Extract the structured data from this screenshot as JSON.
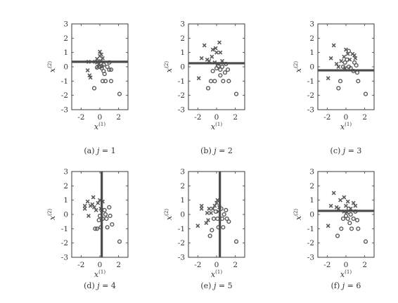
{
  "chart_data": [
    {
      "type": "scatter",
      "caption_prefix": "(a) ",
      "caption_var": "j",
      "caption_rest": " = 1",
      "xlabel": "x",
      "ylabel": "x",
      "xlabel_sup": "(1)",
      "ylabel_sup": "(2)",
      "xlim": [
        -3,
        3
      ],
      "ylim": [
        -3,
        3
      ],
      "xticks": [
        "-2",
        "0",
        "2"
      ],
      "xtick_values": [
        -2,
        0,
        2
      ],
      "yticks": [
        "3",
        "2",
        "1",
        "0",
        "-1",
        "-2",
        "-3"
      ],
      "ytick_values": [
        3,
        2,
        1,
        0,
        -1,
        -2,
        -3
      ],
      "split": {
        "orientation": "horizontal",
        "value": 0.35
      },
      "series": [
        {
          "marker": "cross",
          "points": [
            [
              -1.2,
              0.35
            ],
            [
              -1.3,
              -0.25
            ],
            [
              -1.1,
              -0.6
            ],
            [
              -1.0,
              -0.75
            ],
            [
              -0.5,
              0.35
            ],
            [
              -0.3,
              0.55
            ],
            [
              -0.3,
              0.3
            ],
            [
              -0.1,
              0.2
            ],
            [
              0.0,
              0.75
            ],
            [
              0.0,
              1.05
            ],
            [
              0.15,
              0.85
            ],
            [
              0.3,
              0.6
            ],
            [
              0.1,
              0.4
            ],
            [
              -0.2,
              0.0
            ]
          ]
        },
        {
          "marker": "circle",
          "points": [
            [
              -0.6,
              -1.5
            ],
            [
              -0.3,
              -0.05
            ],
            [
              0.0,
              0.0
            ],
            [
              0.2,
              0.05
            ],
            [
              0.2,
              -0.1
            ],
            [
              0.4,
              0.15
            ],
            [
              0.4,
              -0.3
            ],
            [
              0.5,
              -0.5
            ],
            [
              0.3,
              -1.0
            ],
            [
              0.6,
              -1.0
            ],
            [
              0.8,
              0.0
            ],
            [
              1.0,
              0.3
            ],
            [
              1.0,
              -0.2
            ],
            [
              1.2,
              -0.2
            ],
            [
              1.2,
              -1.0
            ],
            [
              2.1,
              -1.9
            ]
          ]
        }
      ]
    },
    {
      "type": "scatter",
      "caption_prefix": "(b) ",
      "caption_var": "j",
      "caption_rest": " = 2",
      "xlabel": "x",
      "ylabel": "x",
      "xlabel_sup": "(1)",
      "ylabel_sup": "(2)",
      "xlim": [
        -3,
        3
      ],
      "ylim": [
        -3,
        3
      ],
      "xticks": [
        "-2",
        "0",
        "2"
      ],
      "xtick_values": [
        -2,
        0,
        2
      ],
      "yticks": [
        "3",
        "2",
        "1",
        "0",
        "-1",
        "-2",
        "-3"
      ],
      "ytick_values": [
        3,
        2,
        1,
        0,
        -1,
        -2,
        -3
      ],
      "split": {
        "orientation": "horizontal",
        "value": 0.25
      },
      "series": [
        {
          "marker": "cross",
          "points": [
            [
              -1.9,
              -0.8
            ],
            [
              -1.6,
              0.6
            ],
            [
              -1.3,
              1.5
            ],
            [
              -1.0,
              0.5
            ],
            [
              -0.8,
              0.4
            ],
            [
              -0.5,
              0.7
            ],
            [
              -0.4,
              1.2
            ],
            [
              -0.1,
              1.3
            ],
            [
              0.0,
              1.0
            ],
            [
              0.3,
              1.7
            ],
            [
              0.4,
              1.0
            ],
            [
              0.6,
              0.4
            ],
            [
              -0.2,
              0.3
            ],
            [
              0.1,
              0.2
            ]
          ]
        },
        {
          "marker": "circle",
          "points": [
            [
              -0.9,
              -1.5
            ],
            [
              -0.6,
              -1.0
            ],
            [
              -0.4,
              -0.3
            ],
            [
              -0.2,
              -1.0
            ],
            [
              0.0,
              -0.1
            ],
            [
              0.2,
              0.05
            ],
            [
              0.4,
              -0.2
            ],
            [
              0.4,
              -0.6
            ],
            [
              0.6,
              0.0
            ],
            [
              0.7,
              -1.0
            ],
            [
              0.9,
              -0.4
            ],
            [
              1.0,
              0.2
            ],
            [
              1.2,
              -0.2
            ],
            [
              1.3,
              -1.0
            ],
            [
              2.1,
              -1.9
            ]
          ]
        }
      ]
    },
    {
      "type": "scatter",
      "caption_prefix": "(c) ",
      "caption_var": "j",
      "caption_rest": " = 3",
      "xlabel": "x",
      "ylabel": "x",
      "xlabel_sup": "(1)",
      "ylabel_sup": "(2)",
      "xlim": [
        -3,
        3
      ],
      "ylim": [
        -3,
        3
      ],
      "xticks": [
        "-2",
        "0",
        "2"
      ],
      "xtick_values": [
        -2,
        0,
        2
      ],
      "yticks": [
        "3",
        "2",
        "1",
        "0",
        "-1",
        "-2",
        "-3"
      ],
      "ytick_values": [
        3,
        2,
        1,
        0,
        -1,
        -2,
        -3
      ],
      "split": {
        "orientation": "horizontal",
        "value": -0.25
      },
      "series": [
        {
          "marker": "cross",
          "points": [
            [
              -1.9,
              -0.8
            ],
            [
              -1.6,
              0.6
            ],
            [
              -1.3,
              1.5
            ],
            [
              -1.0,
              0.2
            ],
            [
              -0.8,
              0.0
            ],
            [
              -0.5,
              0.4
            ],
            [
              -0.2,
              0.7
            ],
            [
              0.0,
              1.2
            ],
            [
              0.2,
              0.9
            ],
            [
              0.4,
              0.5
            ],
            [
              0.7,
              0.9
            ],
            [
              0.9,
              0.8
            ],
            [
              1.0,
              0.6
            ],
            [
              -0.1,
              -0.1
            ]
          ]
        },
        {
          "marker": "circle",
          "points": [
            [
              -0.8,
              -1.5
            ],
            [
              -0.6,
              -1.0
            ],
            [
              -0.3,
              0.0
            ],
            [
              -0.1,
              0.3
            ],
            [
              0.1,
              0.5
            ],
            [
              0.3,
              1.1
            ],
            [
              0.3,
              0.0
            ],
            [
              0.5,
              -0.1
            ],
            [
              0.8,
              -0.3
            ],
            [
              0.9,
              0.3
            ],
            [
              1.1,
              0.1
            ],
            [
              1.2,
              -0.4
            ],
            [
              1.3,
              -1.0
            ],
            [
              2.1,
              -1.9
            ]
          ]
        }
      ]
    },
    {
      "type": "scatter",
      "caption_prefix": "(d) ",
      "caption_var": "j",
      "caption_rest": " = 4",
      "xlabel": "x",
      "ylabel": "x",
      "xlabel_sup": "(1)",
      "ylabel_sup": "(2)",
      "xlim": [
        -3,
        3
      ],
      "ylim": [
        -3,
        3
      ],
      "xticks": [
        "-2",
        "0",
        "2"
      ],
      "xtick_values": [
        -2,
        0,
        2
      ],
      "yticks": [
        "3",
        "2",
        "1",
        "0",
        "-1",
        "-2",
        "-3"
      ],
      "ytick_values": [
        3,
        2,
        1,
        0,
        -1,
        -2,
        -3
      ],
      "split": {
        "orientation": "vertical",
        "value": 0.2
      },
      "series": [
        {
          "marker": "cross",
          "points": [
            [
              -1.6,
              0.6
            ],
            [
              -1.6,
              0.4
            ],
            [
              -1.3,
              0.9
            ],
            [
              -1.2,
              -0.1
            ],
            [
              -1.0,
              0.6
            ],
            [
              -0.8,
              0.7
            ],
            [
              -0.7,
              1.2
            ],
            [
              -0.6,
              0.5
            ],
            [
              -0.4,
              0.3
            ],
            [
              -0.2,
              0.8
            ],
            [
              0.0,
              1.0
            ],
            [
              0.1,
              0.4
            ],
            [
              0.2,
              0.3
            ],
            [
              0.3,
              0.9
            ]
          ]
        },
        {
          "marker": "circle",
          "points": [
            [
              -0.5,
              -1.0
            ],
            [
              -0.3,
              -1.0
            ],
            [
              -0.1,
              -0.4
            ],
            [
              0.0,
              -0.1
            ],
            [
              0.1,
              -0.9
            ],
            [
              0.3,
              -0.3
            ],
            [
              0.5,
              0.3
            ],
            [
              0.6,
              0.0
            ],
            [
              0.7,
              -0.3
            ],
            [
              0.8,
              -0.9
            ],
            [
              1.0,
              0.5
            ],
            [
              1.1,
              -0.1
            ],
            [
              1.3,
              -0.7
            ],
            [
              2.1,
              -1.9
            ]
          ]
        }
      ]
    },
    {
      "type": "scatter",
      "caption_prefix": "(e) ",
      "caption_var": "j",
      "caption_rest": " = 5",
      "xlabel": "x",
      "ylabel": "x",
      "xlabel_sup": "(1)",
      "ylabel_sup": "(2)",
      "xlim": [
        -3,
        3
      ],
      "ylim": [
        -3,
        3
      ],
      "xticks": [
        "-2",
        "0",
        "2"
      ],
      "xtick_values": [
        -2,
        0,
        2
      ],
      "yticks": [
        "3",
        "2",
        "1",
        "0",
        "-1",
        "-2",
        "-3"
      ],
      "ytick_values": [
        3,
        2,
        1,
        0,
        -1,
        -2,
        -3
      ],
      "split": {
        "orientation": "vertical",
        "value": 0.35
      },
      "series": [
        {
          "marker": "cross",
          "points": [
            [
              -2.0,
              -0.8
            ],
            [
              -1.6,
              0.6
            ],
            [
              -1.6,
              0.4
            ],
            [
              -1.1,
              -0.6
            ],
            [
              -1.0,
              0.1
            ],
            [
              -0.9,
              -0.4
            ],
            [
              -0.8,
              0.4
            ],
            [
              -0.6,
              0.1
            ],
            [
              -0.4,
              0.4
            ],
            [
              -0.2,
              0.6
            ],
            [
              0.0,
              0.8
            ],
            [
              0.1,
              1.0
            ],
            [
              0.3,
              0.5
            ],
            [
              0.2,
              0.2
            ]
          ]
        },
        {
          "marker": "circle",
          "points": [
            [
              -0.7,
              -1.5
            ],
            [
              -0.5,
              -1.1
            ],
            [
              -0.3,
              -0.3
            ],
            [
              -0.1,
              0.2
            ],
            [
              0.1,
              -0.3
            ],
            [
              0.2,
              -0.9
            ],
            [
              0.5,
              0.4
            ],
            [
              0.6,
              -0.3
            ],
            [
              0.7,
              -0.9
            ],
            [
              0.8,
              0.0
            ],
            [
              1.0,
              0.3
            ],
            [
              1.1,
              -0.3
            ],
            [
              1.3,
              -0.5
            ],
            [
              2.1,
              -1.9
            ]
          ]
        }
      ]
    },
    {
      "type": "scatter",
      "caption_prefix": "(f) ",
      "caption_var": "j",
      "caption_rest": " = 6",
      "xlabel": "x",
      "ylabel": "x",
      "xlabel_sup": "(1)",
      "ylabel_sup": "(2)",
      "xlim": [
        -3,
        3
      ],
      "ylim": [
        -3,
        3
      ],
      "xticks": [
        "-2",
        "0",
        "2"
      ],
      "xtick_values": [
        -2,
        0,
        2
      ],
      "yticks": [
        "3",
        "2",
        "1",
        "0",
        "-1",
        "-2",
        "-3"
      ],
      "ytick_values": [
        3,
        2,
        1,
        0,
        -1,
        -2,
        -3
      ],
      "split": {
        "orientation": "horizontal",
        "value": 0.25
      },
      "series": [
        {
          "marker": "cross",
          "points": [
            [
              -1.9,
              -0.8
            ],
            [
              -1.6,
              0.6
            ],
            [
              -1.3,
              1.5
            ],
            [
              -1.0,
              0.5
            ],
            [
              -0.8,
              0.4
            ],
            [
              -0.6,
              1.0
            ],
            [
              -0.2,
              1.2
            ],
            [
              0.0,
              0.6
            ],
            [
              0.2,
              0.9
            ],
            [
              0.5,
              0.4
            ],
            [
              0.8,
              0.8
            ],
            [
              1.0,
              0.6
            ],
            [
              -0.2,
              0.2
            ],
            [
              0.1,
              0.15
            ]
          ]
        },
        {
          "marker": "circle",
          "points": [
            [
              -0.9,
              -1.5
            ],
            [
              -0.5,
              -1.0
            ],
            [
              -0.3,
              -0.3
            ],
            [
              0.0,
              -0.1
            ],
            [
              0.2,
              -0.3
            ],
            [
              0.3,
              0.4
            ],
            [
              0.4,
              -0.6
            ],
            [
              0.5,
              0.0
            ],
            [
              0.6,
              -1.0
            ],
            [
              0.8,
              -0.3
            ],
            [
              1.0,
              0.2
            ],
            [
              1.2,
              -0.4
            ],
            [
              1.3,
              -1.0
            ],
            [
              2.1,
              -1.9
            ]
          ]
        }
      ]
    }
  ]
}
